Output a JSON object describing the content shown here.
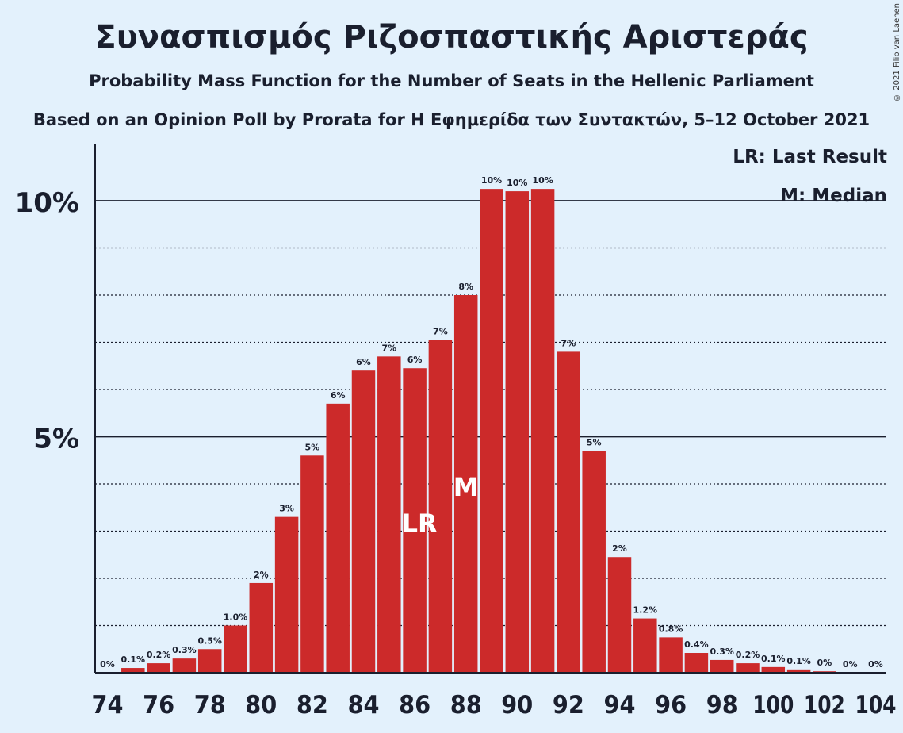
{
  "title": "Συνασπισμός Ριζοσπαστικής Αριστεράς",
  "subtitle": "Probability Mass Function for the Number of Seats in the Hellenic Parliament",
  "subtitle2": "Based on an Opinion Poll by Prorata for Η Εφημερίδα των Συντακτών, 5–12 October 2021",
  "copyright": "© 2021 Filip van Laenen",
  "legend": {
    "lr": "LR: Last Result",
    "m": "M: Median"
  },
  "colors": {
    "bar": "#cc2a2a",
    "background": "#e3f1fc",
    "text": "#1a1f2e"
  },
  "chart_data": {
    "type": "bar",
    "x": [
      74,
      75,
      76,
      77,
      78,
      79,
      80,
      81,
      82,
      83,
      84,
      85,
      86,
      87,
      88,
      89,
      90,
      91,
      92,
      93,
      94,
      95,
      96,
      97,
      98,
      99,
      100,
      101,
      102,
      103,
      104
    ],
    "values": [
      0,
      0.1,
      0.2,
      0.3,
      0.5,
      1.0,
      1.9,
      3.3,
      4.6,
      5.7,
      6.4,
      6.7,
      6.45,
      7.05,
      8.0,
      10.25,
      10.2,
      10.25,
      6.8,
      4.7,
      2.45,
      1.15,
      0.75,
      0.42,
      0.27,
      0.2,
      0.12,
      0.07,
      0.03,
      0,
      0
    ],
    "labels": [
      "0%",
      "0.1%",
      "0.2%",
      "0.3%",
      "0.5%",
      "1.0%",
      "2%",
      "3%",
      "5%",
      "6%",
      "6%",
      "7%",
      "6%",
      "7%",
      "8%",
      "10%",
      "10%",
      "10%",
      "7%",
      "5%",
      "2%",
      "1.2%",
      "0.8%",
      "0.4%",
      "0.3%",
      "0.2%",
      "0.1%",
      "0.1%",
      "0%",
      "0%",
      "0%"
    ],
    "xticks": [
      74,
      76,
      78,
      80,
      82,
      84,
      86,
      88,
      90,
      92,
      94,
      96,
      98,
      100,
      102,
      104
    ],
    "yticks": [
      {
        "value": 5,
        "label": "5%"
      },
      {
        "value": 10,
        "label": "10%"
      }
    ],
    "ylim": [
      0,
      11
    ],
    "last_result": 86,
    "median": 88,
    "lr_label": "LR",
    "median_label": "M",
    "gridlines": "dotted every 1%, solid at 5% and 10%"
  }
}
